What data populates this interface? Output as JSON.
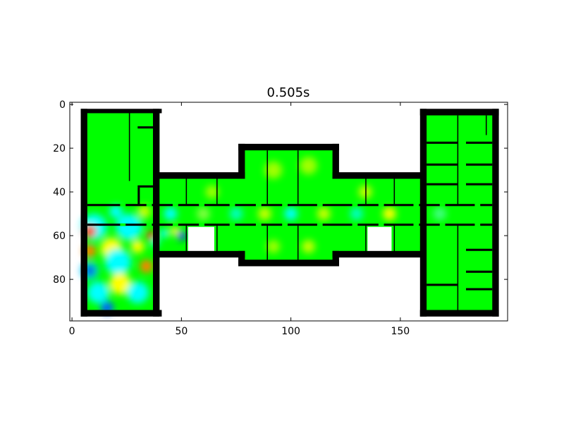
{
  "chart_data": {
    "type": "heatmap",
    "title": "0.505s",
    "xlabel": "",
    "ylabel": "",
    "xlim": [
      -1,
      199
    ],
    "ylim": [
      99,
      -1
    ],
    "x_ticks": [
      0,
      50,
      100,
      150
    ],
    "y_ticks": [
      0,
      20,
      40,
      60,
      80
    ],
    "tick_labels": {
      "x": [
        "0",
        "50",
        "100",
        "150"
      ],
      "y": [
        "0",
        "20",
        "40",
        "60",
        "80"
      ]
    },
    "grid": false,
    "colormap": "jet",
    "colors": {
      "wall": "#000000",
      "background": "#ffffff",
      "field_base": "#00ff00"
    },
    "field_blobs": [
      {
        "x": 10,
        "y": 56,
        "r": 6,
        "color": "#00ffff"
      },
      {
        "x": 26,
        "y": 56,
        "r": 6,
        "color": "#00ffff"
      },
      {
        "x": 8,
        "y": 58,
        "r": 3,
        "color": "#ff4000"
      },
      {
        "x": 18,
        "y": 66,
        "r": 5,
        "color": "#ffff00"
      },
      {
        "x": 8,
        "y": 67,
        "r": 3,
        "color": "#ff8000"
      },
      {
        "x": 30,
        "y": 65,
        "r": 3,
        "color": "#ffff00"
      },
      {
        "x": 21,
        "y": 72,
        "r": 6,
        "color": "#00ffff"
      },
      {
        "x": 8,
        "y": 76,
        "r": 4,
        "color": "#00c8ff"
      },
      {
        "x": 8,
        "y": 76,
        "r": 2,
        "color": "#0000c8"
      },
      {
        "x": 34,
        "y": 74,
        "r": 3,
        "color": "#ff8000"
      },
      {
        "x": 22,
        "y": 82,
        "r": 5,
        "color": "#ffff00"
      },
      {
        "x": 12,
        "y": 86,
        "r": 5,
        "color": "#00ffff"
      },
      {
        "x": 30,
        "y": 86,
        "r": 5,
        "color": "#00ffff"
      },
      {
        "x": 16,
        "y": 93,
        "r": 3,
        "color": "#0060ff"
      },
      {
        "x": 36,
        "y": 60,
        "r": 2,
        "color": "#ff2000"
      },
      {
        "x": 38,
        "y": 63,
        "r": 2,
        "color": "#00ffff"
      },
      {
        "x": 50,
        "y": 60,
        "r": 2,
        "color": "#0000ff"
      },
      {
        "x": 47,
        "y": 58,
        "r": 2,
        "color": "#ffff00"
      },
      {
        "x": 42,
        "y": 59,
        "r": 2,
        "color": "#00ffff"
      },
      {
        "x": 20,
        "y": 49,
        "r": 3,
        "color": "#00ffff"
      },
      {
        "x": 33,
        "y": 49,
        "r": 3,
        "color": "#c8ff00"
      },
      {
        "x": 45,
        "y": 50,
        "r": 3,
        "color": "#00ffff"
      },
      {
        "x": 60,
        "y": 50,
        "r": 3,
        "color": "#80ff40"
      },
      {
        "x": 75,
        "y": 50,
        "r": 3,
        "color": "#00ffc0"
      },
      {
        "x": 88,
        "y": 50,
        "r": 3,
        "color": "#c8ff00"
      },
      {
        "x": 100,
        "y": 50,
        "r": 3,
        "color": "#00ffff"
      },
      {
        "x": 115,
        "y": 50,
        "r": 3,
        "color": "#c8ff00"
      },
      {
        "x": 130,
        "y": 50,
        "r": 3,
        "color": "#00ffc0"
      },
      {
        "x": 145,
        "y": 50,
        "r": 3,
        "color": "#ffff00"
      },
      {
        "x": 168,
        "y": 50,
        "r": 3,
        "color": "#40ff80"
      },
      {
        "x": 92,
        "y": 30,
        "r": 4,
        "color": "#a0ff00"
      },
      {
        "x": 108,
        "y": 28,
        "r": 4,
        "color": "#a0ff00"
      },
      {
        "x": 64,
        "y": 40,
        "r": 3,
        "color": "#a0ff00"
      },
      {
        "x": 134,
        "y": 40,
        "r": 3,
        "color": "#c8ff00"
      },
      {
        "x": 92,
        "y": 65,
        "r": 3,
        "color": "#a0ff00"
      },
      {
        "x": 108,
        "y": 65,
        "r": 3,
        "color": "#c8ff00"
      }
    ],
    "walls": [
      [
        4,
        2,
        41,
        4
      ],
      [
        4,
        2,
        7,
        97
      ],
      [
        4,
        94,
        41,
        97
      ],
      [
        37,
        2,
        40,
        97
      ],
      [
        37,
        31,
        79,
        34
      ],
      [
        37,
        67,
        79,
        70
      ],
      [
        76,
        18,
        79,
        34
      ],
      [
        76,
        67,
        79,
        74
      ],
      [
        76,
        18,
        122,
        21
      ],
      [
        119,
        18,
        122,
        34
      ],
      [
        76,
        71,
        122,
        74
      ],
      [
        119,
        67,
        122,
        74
      ],
      [
        119,
        31,
        161,
        34
      ],
      [
        119,
        67,
        161,
        70
      ],
      [
        159,
        2,
        195,
        5
      ],
      [
        159,
        2,
        162,
        97
      ],
      [
        159,
        94,
        195,
        97
      ],
      [
        192,
        2,
        195,
        97
      ],
      [
        7,
        45.5,
        192,
        46.5
      ],
      [
        7,
        54.5,
        192,
        55.5
      ],
      [
        26,
        4,
        26.5,
        35
      ],
      [
        30,
        10,
        38,
        11
      ],
      [
        30,
        37,
        38,
        38
      ],
      [
        30,
        38,
        31,
        46
      ],
      [
        52,
        34,
        52.5,
        46
      ],
      [
        66,
        34,
        66.5,
        46
      ],
      [
        52,
        55,
        52.5,
        69
      ],
      [
        66,
        55,
        66.5,
        69
      ],
      [
        89,
        21,
        89.5,
        46
      ],
      [
        103,
        21,
        103.5,
        46
      ],
      [
        89,
        55,
        89.5,
        72
      ],
      [
        103,
        55,
        103.5,
        72
      ],
      [
        134,
        34,
        134.5,
        46
      ],
      [
        147,
        34,
        147.5,
        46
      ],
      [
        134,
        55,
        134.5,
        69
      ],
      [
        147,
        55,
        147.5,
        69
      ],
      [
        162,
        17,
        176,
        18
      ],
      [
        162,
        27,
        176,
        28
      ],
      [
        162,
        36,
        176,
        37
      ],
      [
        162,
        82,
        176,
        83
      ],
      [
        180,
        17,
        192,
        18
      ],
      [
        180,
        27,
        192,
        28
      ],
      [
        180,
        36,
        192,
        37
      ],
      [
        180,
        66,
        192,
        67
      ],
      [
        180,
        76,
        192,
        77
      ],
      [
        180,
        84,
        192,
        85
      ],
      [
        176,
        5,
        176.5,
        46
      ],
      [
        176,
        55,
        176.5,
        94
      ],
      [
        189,
        5,
        189.5,
        14
      ]
    ],
    "voids": [
      [
        53,
        56,
        65,
        68
      ],
      [
        135,
        56,
        146,
        68
      ],
      [
        193,
        47,
        196,
        53
      ]
    ]
  }
}
